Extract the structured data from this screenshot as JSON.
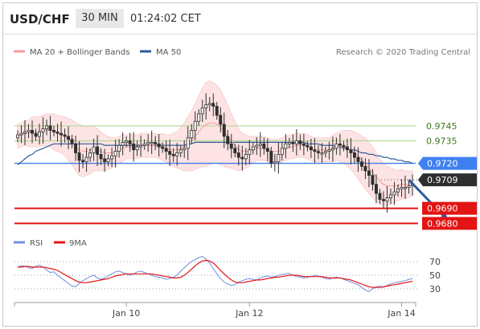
{
  "header": {
    "symbol": "USD/CHF",
    "timeframe": "30 MIN",
    "time": "01:24:02 CET"
  },
  "colors": {
    "ma20": "#f29d9d",
    "band_fill": "#fde3e3",
    "ma50": "#2e5c9a",
    "candle": "#2f2f2f",
    "current": "#3f80f0",
    "target": "#e31414",
    "resistance": "#b5d99a",
    "arrow": "#2b5c9f",
    "rsi": "#6f8fe0",
    "rsi_ma": "#e31414"
  },
  "chart_data": [
    {
      "type": "candlestick",
      "legend": [
        {
          "label": "MA 20 + Bollinger Bands",
          "color": "#f29d9d",
          "icon": "line-swatch"
        },
        {
          "label": "MA 50",
          "color": "#2e5c9a",
          "icon": "line-swatch"
        }
      ],
      "credit": "Research © 2020 Trading Central",
      "ylim": [
        0.9677,
        0.9785
      ],
      "x_ticks": [
        {
          "label": "Jan 10",
          "index": 30
        },
        {
          "label": "Jan 12",
          "index": 64
        },
        {
          "label": "Jan 14",
          "index": 106
        }
      ],
      "levels": [
        {
          "label": "0.9745",
          "value": 0.9745,
          "kind": "resistance"
        },
        {
          "label": "0.9735",
          "value": 0.9735,
          "kind": "resistance"
        },
        {
          "label": "0.9720",
          "value": 0.972,
          "kind": "current"
        },
        {
          "label": "0.9709",
          "value": 0.9709,
          "kind": "pivot"
        },
        {
          "label": "0.9690",
          "value": 0.969,
          "kind": "target"
        },
        {
          "label": "0.9680",
          "value": 0.968,
          "kind": "target"
        }
      ],
      "forecast_arrow": {
        "from": {
          "index": 108,
          "value": 0.9709
        },
        "to": {
          "index": 119,
          "value": 0.96805
        }
      },
      "close": [
        0.9739,
        0.974,
        0.9741,
        0.9742,
        0.974,
        0.9738,
        0.9741,
        0.9743,
        0.9745,
        0.9742,
        0.9741,
        0.974,
        0.9739,
        0.9738,
        0.9736,
        0.9733,
        0.9727,
        0.9722,
        0.9721,
        0.9724,
        0.9727,
        0.9731,
        0.9726,
        0.9723,
        0.9721,
        0.9723,
        0.9725,
        0.9728,
        0.9732,
        0.9734,
        0.9735,
        0.9733,
        0.9729,
        0.9731,
        0.9732,
        0.9733,
        0.9734,
        0.9734,
        0.9733,
        0.9731,
        0.973,
        0.9728,
        0.9726,
        0.9725,
        0.9727,
        0.9729,
        0.973,
        0.9737,
        0.9742,
        0.9748,
        0.9753,
        0.9757,
        0.9759,
        0.976,
        0.9758,
        0.9752,
        0.9746,
        0.9738,
        0.9733,
        0.973,
        0.9727,
        0.9724,
        0.9723,
        0.9726,
        0.9729,
        0.9731,
        0.9732,
        0.9733,
        0.973,
        0.9728,
        0.972,
        0.9721,
        0.9726,
        0.973,
        0.9733,
        0.9734,
        0.9733,
        0.9735,
        0.9733,
        0.9732,
        0.9731,
        0.9729,
        0.9728,
        0.9727,
        0.9727,
        0.9728,
        0.9729,
        0.973,
        0.9733,
        0.9732,
        0.9731,
        0.9729,
        0.9727,
        0.9724,
        0.9721,
        0.9718,
        0.9715,
        0.9712,
        0.9706,
        0.97,
        0.9696,
        0.9695,
        0.9697,
        0.9699,
        0.9701,
        0.9703,
        0.9704,
        0.9704,
        0.9705,
        0.9706
      ],
      "ma20": [
        0.9738,
        0.9739,
        0.974,
        0.974,
        0.9741,
        0.9741,
        0.9741,
        0.9742,
        0.9742,
        0.9742,
        0.9741,
        0.974,
        0.9739,
        0.9738,
        0.9736,
        0.9734,
        0.9731,
        0.9729,
        0.9728,
        0.9728,
        0.9729,
        0.973,
        0.9729,
        0.9728,
        0.9727,
        0.9727,
        0.9727,
        0.9728,
        0.9729,
        0.973,
        0.9731,
        0.9731,
        0.9731,
        0.9731,
        0.9732,
        0.9732,
        0.9732,
        0.9732,
        0.9732,
        0.9731,
        0.9731,
        0.973,
        0.9729,
        0.9729,
        0.9729,
        0.973,
        0.9731,
        0.9733,
        0.9735,
        0.9738,
        0.9741,
        0.9744,
        0.9746,
        0.9747,
        0.9747,
        0.9746,
        0.9744,
        0.9741,
        0.9738,
        0.9735,
        0.9732,
        0.9729,
        0.9728,
        0.9728,
        0.9728,
        0.9729,
        0.973,
        0.973,
        0.973,
        0.9729,
        0.9728,
        0.9728,
        0.9728,
        0.9729,
        0.973,
        0.9731,
        0.9731,
        0.9732,
        0.9732,
        0.9732,
        0.9731,
        0.973,
        0.9729,
        0.9729,
        0.9729,
        0.9729,
        0.9729,
        0.973,
        0.9731,
        0.9731,
        0.9731,
        0.973,
        0.9729,
        0.9727,
        0.9725,
        0.9722,
        0.972,
        0.9717,
        0.9714,
        0.9711,
        0.9708,
        0.9706,
        0.9705,
        0.9705,
        0.9705,
        0.9705,
        0.9706,
        0.9706,
        0.9706,
        0.9707
      ],
      "ma50": [
        0.9719,
        0.9721,
        0.9723,
        0.9725,
        0.9726,
        0.9728,
        0.9729,
        0.973,
        0.9731,
        0.9732,
        0.9733,
        0.9733,
        0.9733,
        0.9733,
        0.9733,
        0.9733,
        0.9733,
        0.9733,
        0.9733,
        0.9733,
        0.9733,
        0.9733,
        0.9733,
        0.9733,
        0.9732,
        0.9732,
        0.9732,
        0.9732,
        0.9732,
        0.9732,
        0.9732,
        0.9732,
        0.9732,
        0.9732,
        0.9732,
        0.9732,
        0.9732,
        0.9732,
        0.9732,
        0.9732,
        0.9732,
        0.9732,
        0.9732,
        0.9732,
        0.9732,
        0.9732,
        0.9732,
        0.9733,
        0.9733,
        0.9734,
        0.9734,
        0.9734,
        0.9734,
        0.9734,
        0.9734,
        0.9734,
        0.9734,
        0.9734,
        0.9734,
        0.9734,
        0.9734,
        0.9734,
        0.9734,
        0.9734,
        0.9734,
        0.9734,
        0.9734,
        0.9734,
        0.9734,
        0.9734,
        0.9734,
        0.9734,
        0.9734,
        0.9734,
        0.9734,
        0.9734,
        0.9734,
        0.9734,
        0.9734,
        0.9734,
        0.9733,
        0.9733,
        0.9733,
        0.9733,
        0.9732,
        0.9732,
        0.9732,
        0.9732,
        0.9731,
        0.9731,
        0.973,
        0.973,
        0.9729,
        0.9729,
        0.9728,
        0.9727,
        0.9727,
        0.9726,
        0.9726,
        0.9725,
        0.9725,
        0.9724,
        0.9724,
        0.9723,
        0.9723,
        0.9722,
        0.9722,
        0.9721,
        0.9721,
        0.972
      ],
      "band_width": [
        0.0008,
        0.0008,
        0.0008,
        0.0009,
        0.001,
        0.001,
        0.001,
        0.001,
        0.0011,
        0.0011,
        0.0012,
        0.0012,
        0.0012,
        0.0013,
        0.0014,
        0.0015,
        0.0016,
        0.0017,
        0.0017,
        0.0016,
        0.0016,
        0.0015,
        0.0014,
        0.0013,
        0.0012,
        0.0011,
        0.001,
        0.0009,
        0.0009,
        0.0009,
        0.0008,
        0.0008,
        0.0008,
        0.0008,
        0.0008,
        0.0008,
        0.0008,
        0.0008,
        0.0008,
        0.0008,
        0.0009,
        0.0009,
        0.001,
        0.0011,
        0.0012,
        0.0014,
        0.0016,
        0.0018,
        0.002,
        0.0022,
        0.0024,
        0.0026,
        0.0028,
        0.0028,
        0.0027,
        0.0026,
        0.0025,
        0.0023,
        0.0021,
        0.0018,
        0.0016,
        0.0014,
        0.0012,
        0.0011,
        0.001,
        0.0009,
        0.0008,
        0.0008,
        0.0008,
        0.0008,
        0.0008,
        0.0008,
        0.0008,
        0.0008,
        0.0008,
        0.0008,
        0.0008,
        0.0008,
        0.0008,
        0.0008,
        0.0008,
        0.0008,
        0.0008,
        0.0008,
        0.0008,
        0.0008,
        0.0008,
        0.0009,
        0.0009,
        0.001,
        0.0011,
        0.0012,
        0.0013,
        0.0014,
        0.0015,
        0.0016,
        0.0017,
        0.0017,
        0.0017,
        0.0016,
        0.0015,
        0.0014,
        0.0013,
        0.0012,
        0.0011,
        0.001,
        0.001,
        0.0009,
        0.0009,
        0.0008
      ]
    },
    {
      "type": "line",
      "legend": [
        {
          "label": "RSI",
          "color": "#6f8fe0",
          "icon": "line-swatch"
        },
        {
          "label": "9MA",
          "color": "#e31414",
          "icon": "line-swatch"
        }
      ],
      "ylim": [
        18,
        82
      ],
      "ticks": [
        "70",
        "50",
        "30"
      ],
      "tick_values": [
        70,
        50,
        30
      ],
      "series": [
        {
          "name": "RSI",
          "values": [
            62,
            64,
            63,
            61,
            60,
            63,
            65,
            62,
            58,
            54,
            55,
            50,
            46,
            42,
            38,
            34,
            33,
            38,
            42,
            45,
            48,
            50,
            46,
            44,
            46,
            49,
            52,
            55,
            56,
            54,
            52,
            50,
            52,
            55,
            56,
            54,
            52,
            50,
            48,
            47,
            46,
            44,
            45,
            47,
            50,
            56,
            61,
            66,
            70,
            73,
            76,
            78,
            74,
            68,
            60,
            52,
            45,
            40,
            37,
            35,
            36,
            40,
            42,
            44,
            45,
            44,
            43,
            46,
            48,
            49,
            47,
            48,
            50,
            51,
            52,
            53,
            50,
            48,
            47,
            46,
            47,
            48,
            50,
            49,
            47,
            45,
            44,
            46,
            47,
            46,
            44,
            42,
            40,
            38,
            36,
            32,
            28,
            26,
            30,
            33,
            34,
            32,
            35,
            37,
            39,
            40,
            41,
            42,
            44,
            45
          ]
        },
        {
          "name": "9MA",
          "values": [
            62,
            62,
            63,
            63,
            62,
            62,
            62,
            62,
            61,
            60,
            59,
            57,
            54,
            51,
            48,
            45,
            42,
            40,
            39,
            39,
            40,
            41,
            42,
            43,
            44,
            45,
            47,
            49,
            50,
            51,
            52,
            52,
            52,
            52,
            52,
            52,
            52,
            52,
            51,
            50,
            49,
            48,
            47,
            46,
            46,
            47,
            50,
            54,
            59,
            64,
            68,
            71,
            72,
            71,
            68,
            63,
            57,
            52,
            47,
            43,
            40,
            39,
            39,
            40,
            41,
            42,
            43,
            43,
            44,
            45,
            46,
            47,
            47,
            48,
            49,
            50,
            50,
            50,
            49,
            48,
            48,
            48,
            48,
            48,
            48,
            47,
            46,
            46,
            46,
            46,
            45,
            44,
            43,
            41,
            39,
            37,
            35,
            33,
            32,
            32,
            32,
            33,
            34,
            35,
            36,
            37,
            38,
            39,
            40,
            41
          ]
        }
      ]
    }
  ]
}
